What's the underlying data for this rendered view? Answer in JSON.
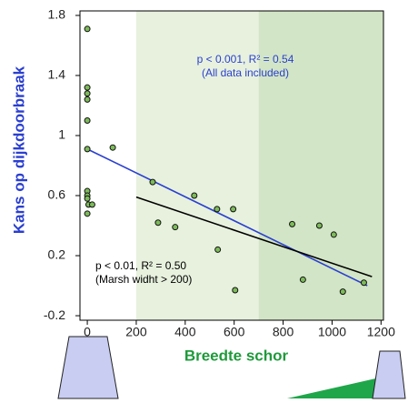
{
  "chart_data": {
    "type": "scatter",
    "x_label": "Breedte schor",
    "y_label": "Kans op dijkdoorbraak",
    "xlim": [
      -30,
      1210
    ],
    "ylim": [
      -0.23,
      1.83
    ],
    "xticks": [
      0,
      200,
      400,
      600,
      800,
      1000,
      1200
    ],
    "yticks": [
      -0.2,
      0.2,
      0.6,
      1,
      1.4,
      1.8
    ],
    "bands": [
      {
        "from": 200,
        "to": 700,
        "color": "#e7f1de"
      },
      {
        "from": 700,
        "to": 1210,
        "color": "#d2e5c6"
      }
    ],
    "point_color": "#7dbb5a",
    "x": [
      0,
      0,
      0,
      0,
      0,
      0,
      0,
      0,
      0,
      5,
      20,
      0,
      104,
      267,
      289,
      359,
      437,
      530,
      596,
      533,
      604,
      837,
      881,
      948,
      1007,
      1044,
      1130
    ],
    "values": [
      1.71,
      1.32,
      1.28,
      1.24,
      1.1,
      0.91,
      0.63,
      0.6,
      0.58,
      0.54,
      0.54,
      0.48,
      0.92,
      0.69,
      0.42,
      0.39,
      0.6,
      0.51,
      0.51,
      0.24,
      -0.03,
      0.41,
      0.04,
      0.4,
      0.34,
      -0.04,
      0.02
    ],
    "lines": [
      {
        "color": "#2a3fd0",
        "x": [
          0,
          1144
        ],
        "y": [
          0.91,
          0.0
        ]
      },
      {
        "color": "#000000",
        "x": [
          200,
          1163
        ],
        "y": [
          0.59,
          0.06
        ]
      }
    ],
    "annotations": [
      {
        "lines": [
          "p < 0.001, R² = 0.54",
          "(All data included)"
        ],
        "color": "#2a3fd0"
      },
      {
        "lines": [
          "p < 0.01, R² = 0.50",
          "(Marsh widht > 200)"
        ],
        "color": "#000000"
      }
    ]
  }
}
